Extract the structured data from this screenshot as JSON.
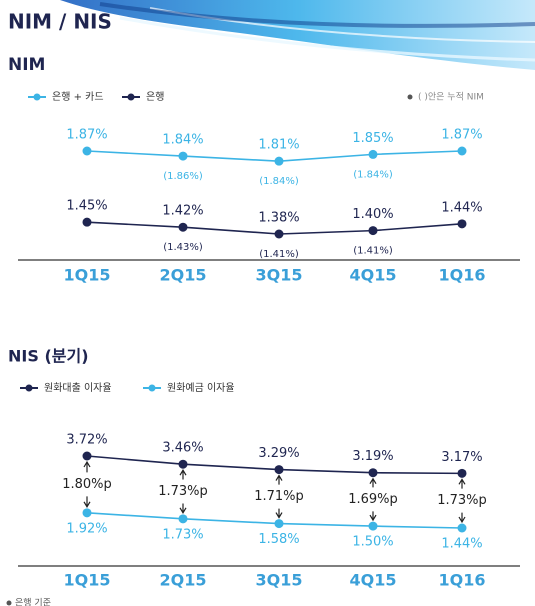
{
  "header": {
    "title": "NIM / NIS"
  },
  "footnote": "은행 기준",
  "chart_data": [
    {
      "type": "line",
      "title": "NIM",
      "note": "( )안은 누적 NIM",
      "categories": [
        "1Q15",
        "2Q15",
        "3Q15",
        "4Q15",
        "1Q16"
      ],
      "series": [
        {
          "name": "은행 + 카드",
          "color": "#3cb4e5",
          "values": [
            1.87,
            1.84,
            1.81,
            1.85,
            1.87
          ],
          "value_labels": [
            "1.87%",
            "1.84%",
            "1.81%",
            "1.85%",
            "1.87%"
          ],
          "cumulative": [
            null,
            1.86,
            1.84,
            1.84,
            null
          ],
          "cumulative_labels": [
            null,
            "(1.86%)",
            "(1.84%)",
            "(1.84%)",
            null
          ]
        },
        {
          "name": "은행",
          "color": "#1f2550",
          "values": [
            1.45,
            1.42,
            1.38,
            1.4,
            1.44
          ],
          "value_labels": [
            "1.45%",
            "1.42%",
            "1.38%",
            "1.40%",
            "1.44%"
          ],
          "cumulative": [
            null,
            1.43,
            1.41,
            1.41,
            null
          ],
          "cumulative_labels": [
            null,
            "(1.43%)",
            "(1.41%)",
            "(1.41%)",
            null
          ]
        }
      ]
    },
    {
      "type": "line",
      "title": "NIS (분기)",
      "categories": [
        "1Q15",
        "2Q15",
        "3Q15",
        "4Q15",
        "1Q16"
      ],
      "series": [
        {
          "name": "원화대출 이자율",
          "color": "#1f2550",
          "values": [
            3.72,
            3.46,
            3.29,
            3.19,
            3.17
          ],
          "value_labels": [
            "3.72%",
            "3.46%",
            "3.29%",
            "3.19%",
            "3.17%"
          ]
        },
        {
          "name": "원화예금 이자율",
          "color": "#3cb4e5",
          "values": [
            1.92,
            1.73,
            1.58,
            1.5,
            1.44
          ],
          "value_labels": [
            "1.92%",
            "1.73%",
            "1.58%",
            "1.50%",
            "1.44%"
          ]
        }
      ],
      "spread": [
        1.8,
        1.73,
        1.71,
        1.69,
        1.73
      ],
      "spread_labels": [
        "1.80%p",
        "1.73%p",
        "1.71%p",
        "1.69%p",
        "1.73%p"
      ]
    }
  ]
}
